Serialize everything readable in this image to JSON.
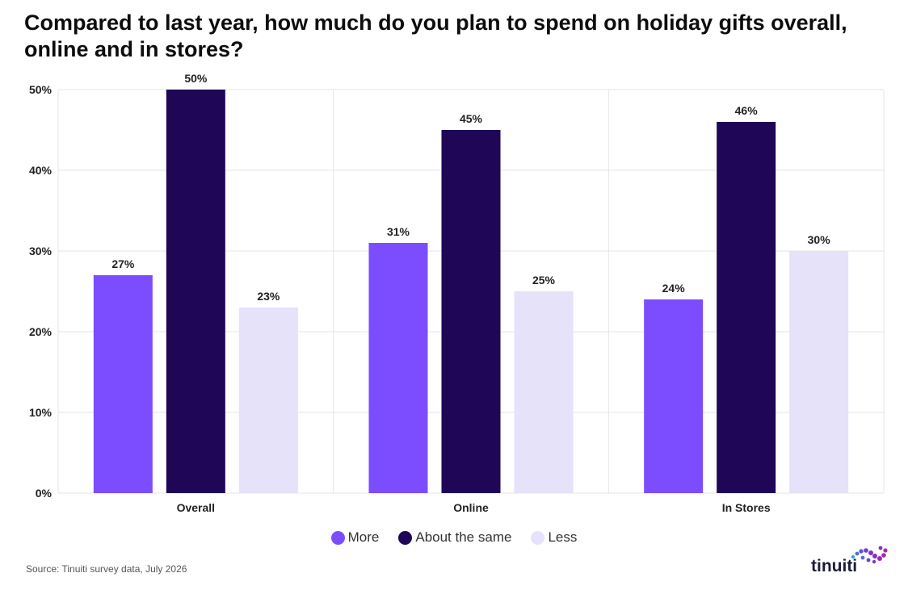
{
  "title": "Compared to last year, how much do you plan to spend on holiday gifts overall, online and in stores?",
  "source": "Source: Tinuiti survey data, July 2026",
  "brand": "tinuiti",
  "colors": {
    "more": "#7c4dff",
    "same": "#1f0657",
    "less": "#e5e2fa",
    "grid": "#e6e6e6"
  },
  "chart_data": {
    "type": "bar",
    "title": "Compared to last year, how much do you plan to spend on holiday gifts overall, online and in stores?",
    "categories": [
      "Overall",
      "Online",
      "In Stores"
    ],
    "series": [
      {
        "name": "More",
        "values": [
          27,
          31,
          24
        ],
        "labels": [
          "27%",
          "31%",
          "24%"
        ]
      },
      {
        "name": "About the same",
        "values": [
          50,
          45,
          46
        ],
        "labels": [
          "50%",
          "45%",
          "46%"
        ]
      },
      {
        "name": "Less",
        "values": [
          23,
          25,
          30
        ],
        "labels": [
          "23%",
          "25%",
          "30%"
        ]
      }
    ],
    "yticks": [
      "0%",
      "10%",
      "20%",
      "30%",
      "40%",
      "50%"
    ],
    "ytick_values": [
      0,
      10,
      20,
      30,
      40,
      50
    ],
    "ylim": [
      0,
      50
    ],
    "xlabel": "",
    "ylabel": "",
    "grid": true,
    "legend_position": "bottom-center"
  }
}
